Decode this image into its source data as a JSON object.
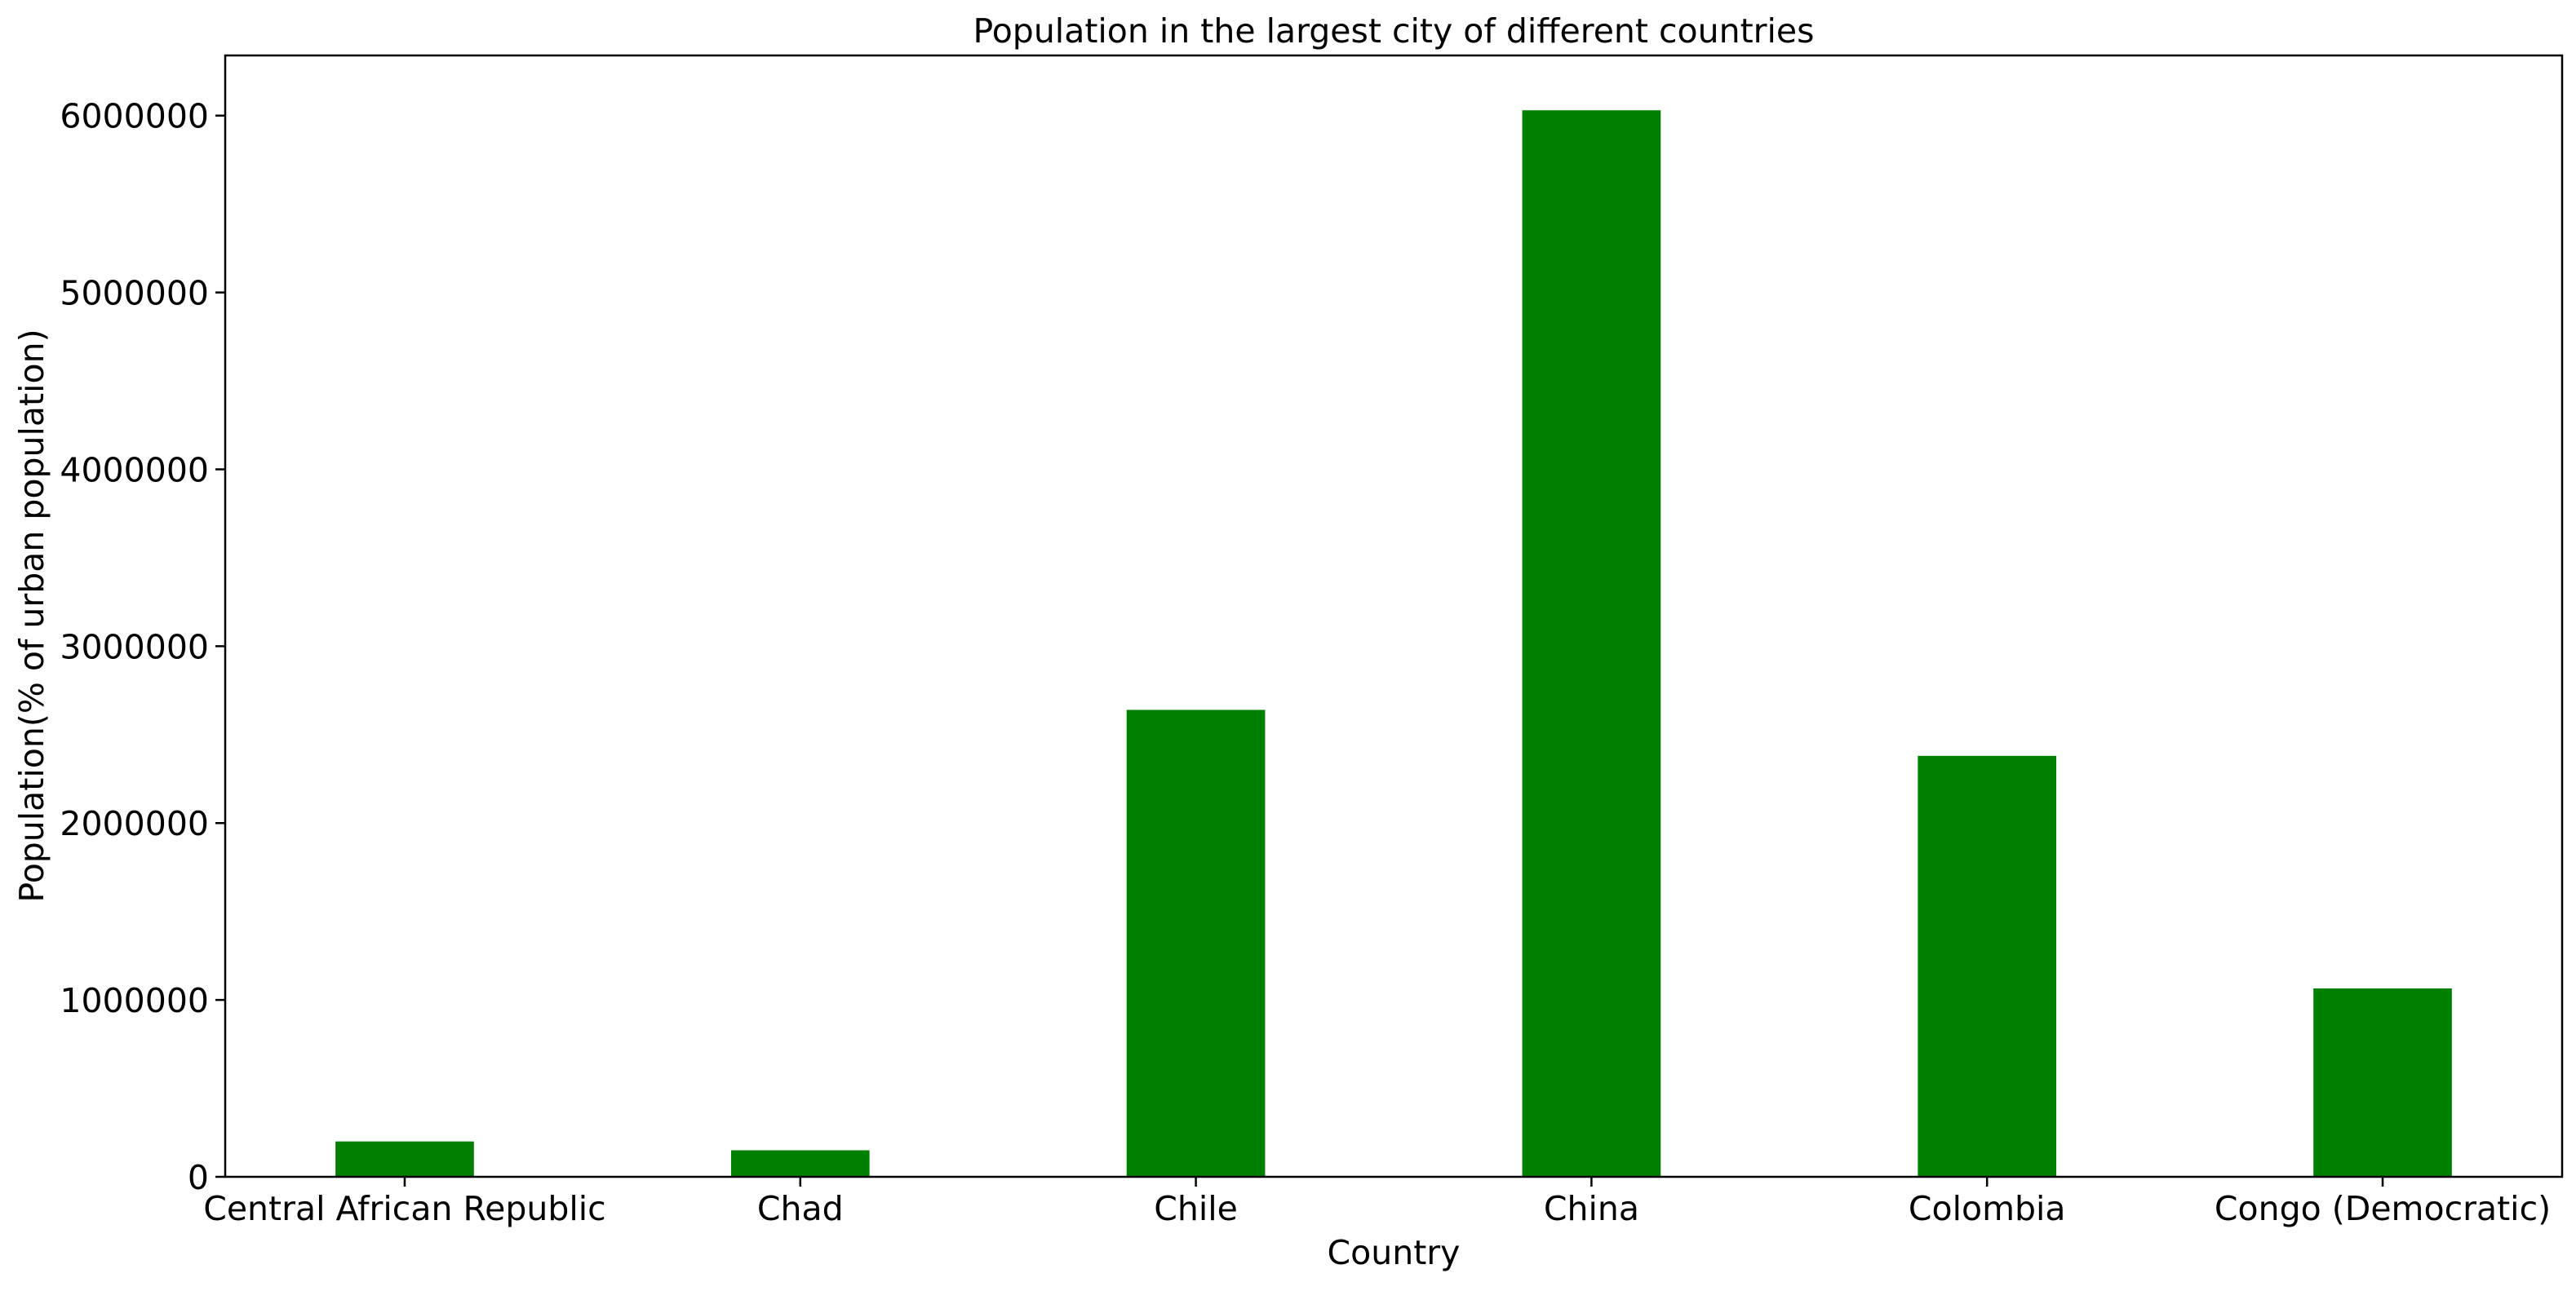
{
  "chart_data": {
    "type": "bar",
    "title": "Population in the largest city of different countries",
    "xlabel": "Country",
    "ylabel": "Population(% of urban population)",
    "categories": [
      "Central African Republic",
      "Chad",
      "Chile",
      "China",
      "Colombia",
      "Congo (Democratic)"
    ],
    "values": [
      200000,
      150000,
      2640000,
      6030000,
      2380000,
      1065000
    ],
    "ylim": [
      0,
      6340000
    ],
    "yticks": [
      0,
      1000000,
      2000000,
      3000000,
      4000000,
      5000000,
      6000000
    ],
    "ytick_labels": [
      "0",
      "1000000",
      "2000000",
      "3000000",
      "4000000",
      "5000000",
      "6000000"
    ],
    "bar_color": "#008000",
    "grid": false,
    "legend": "none"
  }
}
